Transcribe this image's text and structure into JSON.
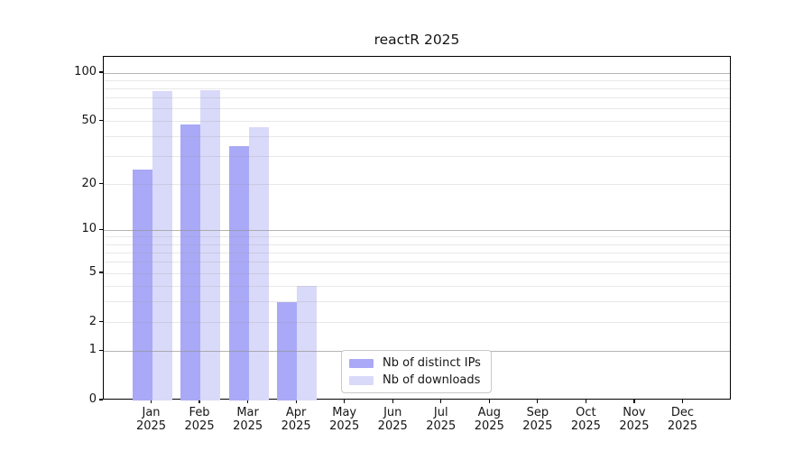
{
  "chart_data": {
    "type": "bar",
    "title": "reactR 2025",
    "categories": [
      "Jan",
      "Feb",
      "Mar",
      "Apr",
      "May",
      "Jun",
      "Jul",
      "Aug",
      "Sep",
      "Oct",
      "Nov",
      "Dec"
    ],
    "x_sublabel_year": "2025",
    "series": [
      {
        "name": "Nb of distinct IPs",
        "color": "#a9a9f7",
        "values": [
          25,
          48,
          35,
          3,
          0,
          0,
          0,
          0,
          0,
          0,
          0,
          0
        ]
      },
      {
        "name": "Nb of downloads",
        "color": "#d9d9f9",
        "values": [
          77,
          78,
          46,
          4,
          0,
          0,
          0,
          0,
          0,
          0,
          0,
          0
        ]
      }
    ],
    "y_axis": {
      "scale": "log1p",
      "tick_values": [
        100,
        50,
        20,
        10,
        5,
        2,
        1,
        0
      ],
      "tick_labels": [
        "100",
        "50",
        "20",
        "10",
        "5",
        "2",
        "1",
        "0"
      ],
      "major_gridlines": [
        1,
        10,
        100
      ],
      "minor_gridlines": [
        2,
        3,
        4,
        5,
        6,
        7,
        8,
        9,
        20,
        30,
        40,
        50,
        60,
        70,
        80,
        90
      ],
      "ylim_top_value": 103
    },
    "legend": {
      "position": "lower center",
      "entries": [
        "Nb of distinct IPs",
        "Nb of downloads"
      ]
    },
    "grid": "on, drawn above bars",
    "background_color": "#ffffff",
    "spine_color": "#000000"
  }
}
